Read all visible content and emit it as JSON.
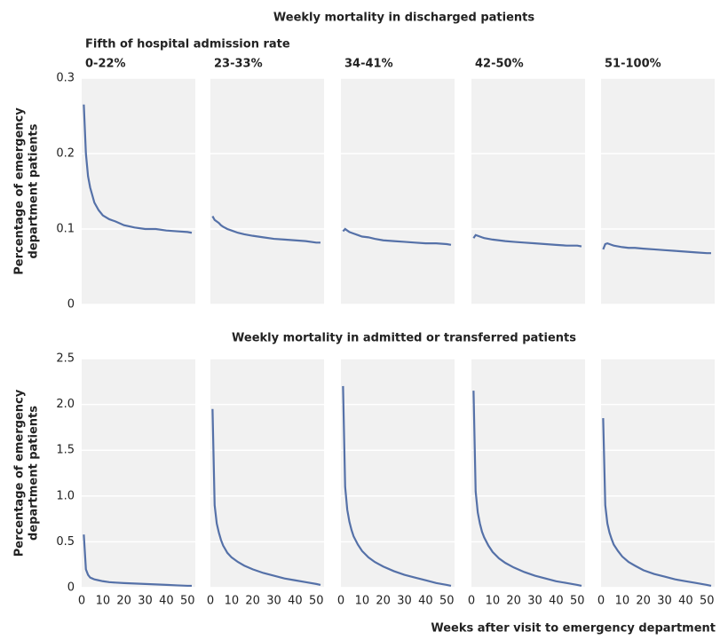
{
  "chart_data": [
    {
      "type": "line",
      "title": "Weekly mortality in discharged patients",
      "panel_group_label": "Fifth of hospital admission rate",
      "ylabel": [
        "Percentage of emergency",
        "department patients"
      ],
      "color": "#5571a8",
      "ylim": [
        0,
        0.3
      ],
      "yticks": [
        0,
        0.1,
        0.2,
        0.3
      ],
      "xlim": [
        0,
        52
      ],
      "x": [
        1,
        2,
        3,
        4,
        5,
        6,
        8,
        10,
        13,
        16,
        20,
        25,
        30,
        35,
        40,
        45,
        50,
        52
      ],
      "panels": [
        {
          "subtitle": "0-22%",
          "values": [
            0.265,
            0.2,
            0.17,
            0.155,
            0.145,
            0.135,
            0.125,
            0.118,
            0.113,
            0.11,
            0.105,
            0.102,
            0.1,
            0.1,
            0.098,
            0.097,
            0.096,
            0.095
          ]
        },
        {
          "subtitle": "23-33%",
          "values": [
            0.117,
            0.112,
            0.11,
            0.108,
            0.105,
            0.103,
            0.1,
            0.098,
            0.095,
            0.093,
            0.091,
            0.089,
            0.087,
            0.086,
            0.085,
            0.084,
            0.082,
            0.082
          ]
        },
        {
          "subtitle": "34-41%",
          "values": [
            0.097,
            0.1,
            0.098,
            0.096,
            0.095,
            0.094,
            0.092,
            0.09,
            0.089,
            0.087,
            0.085,
            0.084,
            0.083,
            0.082,
            0.081,
            0.081,
            0.08,
            0.079
          ]
        },
        {
          "subtitle": "42-50%",
          "values": [
            0.088,
            0.092,
            0.091,
            0.09,
            0.089,
            0.088,
            0.087,
            0.086,
            0.085,
            0.084,
            0.083,
            0.082,
            0.081,
            0.08,
            0.079,
            0.078,
            0.078,
            0.077
          ]
        },
        {
          "subtitle": "51-100%",
          "values": [
            0.073,
            0.08,
            0.081,
            0.08,
            0.079,
            0.078,
            0.077,
            0.076,
            0.075,
            0.075,
            0.074,
            0.073,
            0.072,
            0.071,
            0.07,
            0.069,
            0.068,
            0.068
          ]
        }
      ]
    },
    {
      "type": "line",
      "title": "Weekly mortality in admitted or transferred patients",
      "ylabel": [
        "Percentage of emergency",
        "department patients"
      ],
      "xlabel": "Weeks after visit to emergency department",
      "color": "#5571a8",
      "ylim": [
        0,
        2.5
      ],
      "yticks": [
        0,
        0.5,
        {
          "value": 1,
          "label": "1.0"
        },
        1.5,
        {
          "value": 2,
          "label": "2.0"
        },
        2.5
      ],
      "xlim": [
        0,
        52
      ],
      "xticks": [
        0,
        10,
        20,
        30,
        40,
        50
      ],
      "x": [
        1,
        2,
        3,
        4,
        5,
        6,
        8,
        10,
        13,
        16,
        20,
        25,
        30,
        35,
        40,
        45,
        50,
        52
      ],
      "panels": [
        {
          "values": [
            0.58,
            0.2,
            0.14,
            0.11,
            0.1,
            0.09,
            0.08,
            0.07,
            0.06,
            0.055,
            0.05,
            0.045,
            0.04,
            0.035,
            0.03,
            0.025,
            0.02,
            0.02
          ]
        },
        {
          "values": [
            1.95,
            0.9,
            0.7,
            0.6,
            0.52,
            0.46,
            0.38,
            0.33,
            0.28,
            0.24,
            0.2,
            0.16,
            0.13,
            0.1,
            0.08,
            0.06,
            0.04,
            0.03
          ]
        },
        {
          "values": [
            2.2,
            1.1,
            0.85,
            0.72,
            0.63,
            0.56,
            0.47,
            0.4,
            0.33,
            0.28,
            0.23,
            0.18,
            0.14,
            0.11,
            0.08,
            0.05,
            0.03,
            0.02
          ]
        },
        {
          "values": [
            2.15,
            1.05,
            0.82,
            0.7,
            0.61,
            0.55,
            0.46,
            0.39,
            0.32,
            0.27,
            0.22,
            0.17,
            0.13,
            0.1,
            0.07,
            0.05,
            0.03,
            0.02
          ]
        },
        {
          "values": [
            1.85,
            0.9,
            0.7,
            0.6,
            0.53,
            0.47,
            0.4,
            0.34,
            0.28,
            0.24,
            0.19,
            0.15,
            0.12,
            0.09,
            0.07,
            0.05,
            0.03,
            0.02
          ]
        }
      ]
    }
  ]
}
